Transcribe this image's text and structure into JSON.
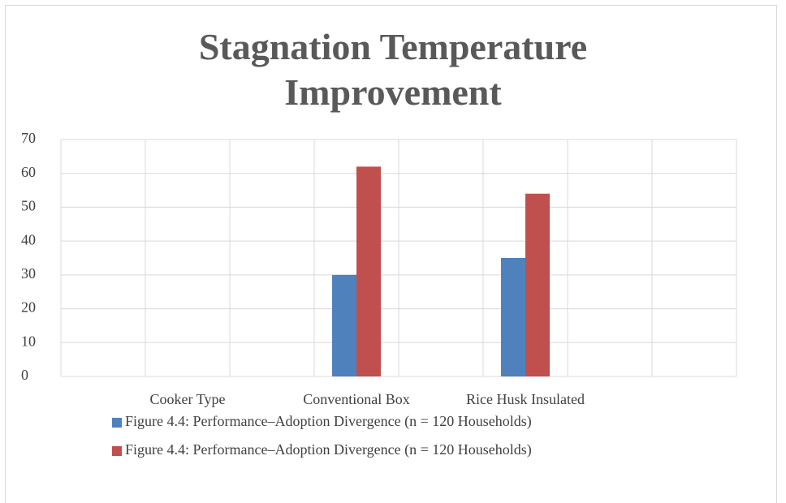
{
  "chart_data": {
    "type": "bar",
    "title": "Stagnation Temperature Improvement",
    "categories": [
      "Cooker Type",
      "Conventional Box",
      "Rice Husk Insulated"
    ],
    "series": [
      {
        "name": "Figure 4.4: Performance–Adoption Divergence (n = 120 Households)",
        "color": "#4f81bd",
        "values": [
          null,
          30,
          35
        ]
      },
      {
        "name": "Figure 4.4: Performance–Adoption Divergence (n = 120 Households)",
        "color": "#c0504d",
        "values": [
          null,
          62,
          54
        ]
      }
    ],
    "ylim": [
      0,
      70
    ],
    "yticks": [
      0,
      10,
      20,
      30,
      40,
      50,
      60,
      70
    ],
    "grid": true,
    "legend": "bottom"
  }
}
